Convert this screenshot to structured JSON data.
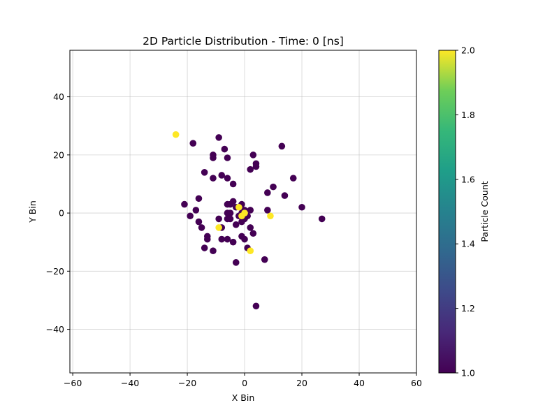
{
  "chart_data": {
    "type": "scatter",
    "title": "2D Particle Distribution - Time: 0 [ns]",
    "xlabel": "X Bin",
    "ylabel": "Y Bin",
    "xlim": [
      -61,
      60
    ],
    "ylim": [
      -55,
      56
    ],
    "xticks": [
      -60,
      -40,
      -20,
      0,
      20,
      40,
      60
    ],
    "yticks": [
      -40,
      -20,
      0,
      20,
      40
    ],
    "xtick_labels": [
      "−60",
      "−40",
      "−20",
      "0",
      "20",
      "40",
      "60"
    ],
    "ytick_labels": [
      "−40",
      "−20",
      "0",
      "20",
      "40"
    ],
    "grid": true,
    "colorbar": {
      "label": "Particle Count",
      "colormap": "viridis",
      "range": [
        1.0,
        2.0
      ],
      "ticks": [
        1.0,
        1.2,
        1.4,
        1.6,
        1.8,
        2.0
      ],
      "tick_labels": [
        "1.0",
        "1.2",
        "1.4",
        "1.6",
        "1.8",
        "2.0"
      ]
    },
    "colors": {
      "low": "#440154",
      "high": "#fde725"
    },
    "points": [
      {
        "x": -24,
        "y": 27,
        "count": 2
      },
      {
        "x": -18,
        "y": 24,
        "count": 1
      },
      {
        "x": -9,
        "y": 26,
        "count": 1
      },
      {
        "x": 13,
        "y": 23,
        "count": 1
      },
      {
        "x": -7,
        "y": 22,
        "count": 1
      },
      {
        "x": -11,
        "y": 20,
        "count": 1
      },
      {
        "x": -11,
        "y": 19,
        "count": 1
      },
      {
        "x": -6,
        "y": 19,
        "count": 1
      },
      {
        "x": 3,
        "y": 20,
        "count": 1
      },
      {
        "x": 4,
        "y": 17,
        "count": 1
      },
      {
        "x": 4,
        "y": 16,
        "count": 1
      },
      {
        "x": 2,
        "y": 15,
        "count": 1
      },
      {
        "x": -14,
        "y": 14,
        "count": 1
      },
      {
        "x": -8,
        "y": 13,
        "count": 1
      },
      {
        "x": -11,
        "y": 12,
        "count": 1
      },
      {
        "x": -6,
        "y": 12,
        "count": 1
      },
      {
        "x": 17,
        "y": 12,
        "count": 1
      },
      {
        "x": -4,
        "y": 10,
        "count": 1
      },
      {
        "x": 10,
        "y": 9,
        "count": 1
      },
      {
        "x": 8,
        "y": 7,
        "count": 1
      },
      {
        "x": 14,
        "y": 6,
        "count": 1
      },
      {
        "x": -16,
        "y": 5,
        "count": 1
      },
      {
        "x": -21,
        "y": 3,
        "count": 1
      },
      {
        "x": -4,
        "y": 4,
        "count": 1
      },
      {
        "x": -6,
        "y": 3,
        "count": 1
      },
      {
        "x": -5,
        "y": 3,
        "count": 1
      },
      {
        "x": -1,
        "y": 3,
        "count": 1
      },
      {
        "x": -3,
        "y": 2,
        "count": 1
      },
      {
        "x": -2,
        "y": 2,
        "count": 2
      },
      {
        "x": 20,
        "y": 2,
        "count": 1
      },
      {
        "x": -17,
        "y": 1,
        "count": 1
      },
      {
        "x": 8,
        "y": 1,
        "count": 1
      },
      {
        "x": 0,
        "y": 1,
        "count": 1
      },
      {
        "x": 2,
        "y": 1,
        "count": 1
      },
      {
        "x": -6,
        "y": 0,
        "count": 1
      },
      {
        "x": -5,
        "y": 0,
        "count": 1
      },
      {
        "x": -1,
        "y": 0,
        "count": 1
      },
      {
        "x": 0,
        "y": 0,
        "count": 2
      },
      {
        "x": -19,
        "y": -1,
        "count": 1
      },
      {
        "x": -2,
        "y": -1,
        "count": 1
      },
      {
        "x": 1,
        "y": -1,
        "count": 1
      },
      {
        "x": 9,
        "y": -1,
        "count": 2
      },
      {
        "x": -1,
        "y": -1,
        "count": 2
      },
      {
        "x": -6,
        "y": -2,
        "count": 1
      },
      {
        "x": -5,
        "y": -2,
        "count": 1
      },
      {
        "x": -9,
        "y": -2,
        "count": 1
      },
      {
        "x": 27,
        "y": -2,
        "count": 1
      },
      {
        "x": 0,
        "y": -2,
        "count": 1
      },
      {
        "x": -16,
        "y": -3,
        "count": 1
      },
      {
        "x": -1,
        "y": -3,
        "count": 1
      },
      {
        "x": -3,
        "y": -4,
        "count": 1
      },
      {
        "x": -15,
        "y": -5,
        "count": 1
      },
      {
        "x": -8,
        "y": -5,
        "count": 1
      },
      {
        "x": -9,
        "y": -5,
        "count": 2
      },
      {
        "x": 2,
        "y": -5,
        "count": 1
      },
      {
        "x": 3,
        "y": -7,
        "count": 1
      },
      {
        "x": -13,
        "y": -8,
        "count": 1
      },
      {
        "x": -13,
        "y": -9,
        "count": 1
      },
      {
        "x": -8,
        "y": -9,
        "count": 1
      },
      {
        "x": -6,
        "y": -9,
        "count": 1
      },
      {
        "x": -1,
        "y": -8,
        "count": 1
      },
      {
        "x": 0,
        "y": -9,
        "count": 1
      },
      {
        "x": -4,
        "y": -10,
        "count": 1
      },
      {
        "x": -14,
        "y": -12,
        "count": 1
      },
      {
        "x": -11,
        "y": -13,
        "count": 1
      },
      {
        "x": 1,
        "y": -12,
        "count": 1
      },
      {
        "x": 2,
        "y": -13,
        "count": 2
      },
      {
        "x": -3,
        "y": -17,
        "count": 1
      },
      {
        "x": 7,
        "y": -16,
        "count": 1
      },
      {
        "x": 4,
        "y": -32,
        "count": 1
      }
    ]
  }
}
